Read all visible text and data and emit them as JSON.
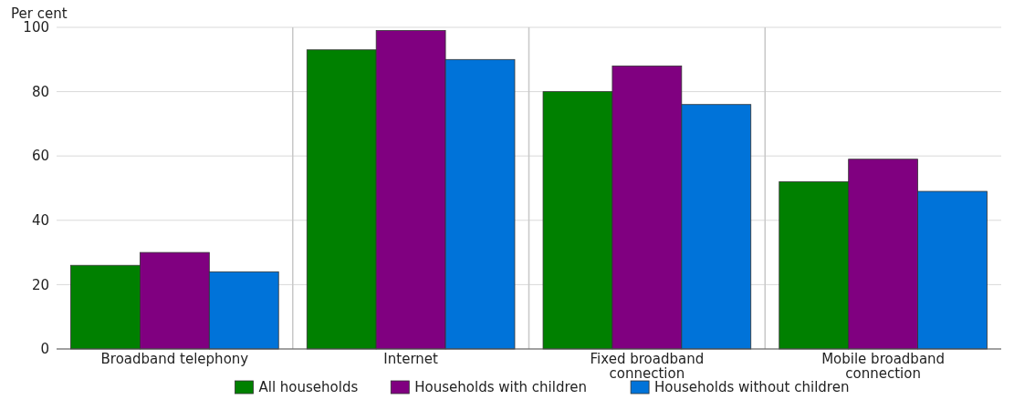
{
  "chart_data": {
    "type": "bar",
    "ylabel": "Per cent",
    "categories": [
      "Broadband telephony",
      "Internet",
      "Fixed broadband connection",
      "Mobile broadband connection"
    ],
    "series": [
      {
        "name": "All households",
        "color": "#008000",
        "values": [
          26,
          93,
          80,
          52
        ]
      },
      {
        "name": "Households with children",
        "color": "#800080",
        "values": [
          30,
          99,
          88,
          59
        ]
      },
      {
        "name": "Households without children",
        "color": "#0073d9",
        "values": [
          24,
          90,
          76,
          49
        ]
      }
    ],
    "ylim": [
      0,
      100
    ],
    "yticks": [
      0,
      20,
      40,
      60,
      80,
      100
    ],
    "grid": true,
    "legend": "bottom"
  }
}
